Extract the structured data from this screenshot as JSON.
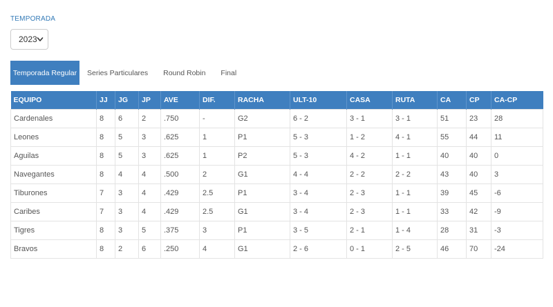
{
  "season": {
    "label": "TEMPORADA",
    "selected": "2023"
  },
  "tabs": [
    {
      "label": "Temporada Regular",
      "active": true
    },
    {
      "label": "Series Particulares",
      "active": false
    },
    {
      "label": "Round Robin",
      "active": false
    },
    {
      "label": "Final",
      "active": false
    }
  ],
  "table": {
    "headers": [
      "EQUIPO",
      "JJ",
      "JG",
      "JP",
      "AVE",
      "DIF.",
      "RACHA",
      "ULT-10",
      "CASA",
      "RUTA",
      "CA",
      "CP",
      "CA-CP"
    ],
    "rows": [
      [
        "Cardenales",
        "8",
        "6",
        "2",
        ".750",
        "-",
        "G2",
        "6 - 2",
        "3 - 1",
        "3 - 1",
        "51",
        "23",
        "28"
      ],
      [
        "Leones",
        "8",
        "5",
        "3",
        ".625",
        "1",
        "P1",
        "5 - 3",
        "1 - 2",
        "4 - 1",
        "55",
        "44",
        "11"
      ],
      [
        "Aguilas",
        "8",
        "5",
        "3",
        ".625",
        "1",
        "P2",
        "5 - 3",
        "4 - 2",
        "1 - 1",
        "40",
        "40",
        "0"
      ],
      [
        "Navegantes",
        "8",
        "4",
        "4",
        ".500",
        "2",
        "G1",
        "4 - 4",
        "2 - 2",
        "2 - 2",
        "43",
        "40",
        "3"
      ],
      [
        "Tiburones",
        "7",
        "3",
        "4",
        ".429",
        "2.5",
        "P1",
        "3 - 4",
        "2 - 3",
        "1 - 1",
        "39",
        "45",
        "-6"
      ],
      [
        "Caribes",
        "7",
        "3",
        "4",
        ".429",
        "2.5",
        "G1",
        "3 - 4",
        "2 - 3",
        "1 - 1",
        "33",
        "42",
        "-9"
      ],
      [
        "Tigres",
        "8",
        "3",
        "5",
        ".375",
        "3",
        "P1",
        "3 - 5",
        "2 - 1",
        "1 - 4",
        "28",
        "31",
        "-3"
      ],
      [
        "Bravos",
        "8",
        "2",
        "6",
        ".250",
        "4",
        "G1",
        "2 - 6",
        "0 - 1",
        "2 - 5",
        "46",
        "70",
        "-24"
      ]
    ]
  },
  "colors": {
    "accent": "#3f7fbf",
    "label": "#337ab7",
    "text": "#555555",
    "border": "#e3e3e3"
  },
  "icons": {
    "select_arrow": "chevron-down-icon"
  }
}
